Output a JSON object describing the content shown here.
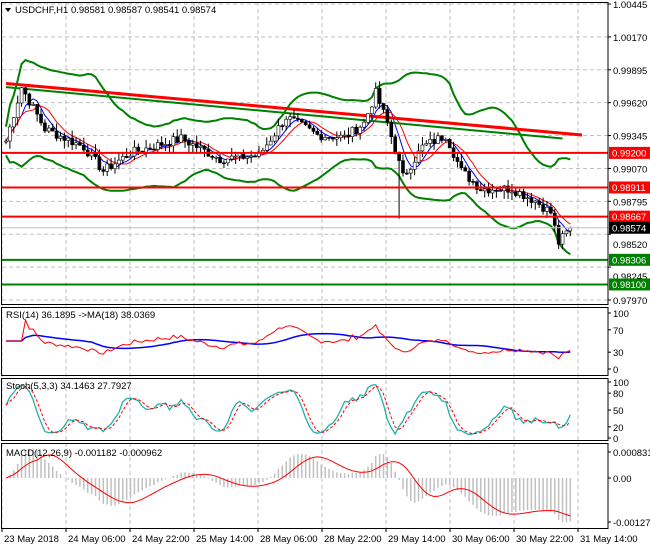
{
  "header": {
    "symbol": "USDCHF,H1",
    "open": "0.98581",
    "high": "0.98587",
    "low": "0.98541",
    "close": "0.98574"
  },
  "price_axis": [
    "1.00445",
    "1.00170",
    "0.99895",
    "0.99620",
    "0.99345",
    "0.99070",
    "0.98795",
    "0.98520",
    "0.98245",
    "0.97970"
  ],
  "levels": [
    {
      "label": "0.99200",
      "value": 0.992,
      "color": "#ff0000"
    },
    {
      "label": "0.98911",
      "value": 0.98911,
      "color": "#ff0000"
    },
    {
      "label": "0.98667",
      "value": 0.98667,
      "color": "#ff0000"
    },
    {
      "label": "0.98306",
      "value": 0.98306,
      "color": "#008000"
    },
    {
      "label": "0.98100",
      "value": 0.981,
      "color": "#008000"
    }
  ],
  "current_price": {
    "label": "0.98574",
    "value": 0.98574
  },
  "rsi": {
    "title": "RSI(14) 36.1895  ->MA(18) 38.0369",
    "axis": [
      "100",
      "70",
      "30",
      "0"
    ]
  },
  "stoch": {
    "title": "Stoch(5,3,3) 34.1463 27.7927",
    "axis": [
      "100",
      "80",
      "50",
      "20",
      "0"
    ]
  },
  "macd": {
    "title": "MACD(12,26,9) -0.001182 -0.000962",
    "axis": [
      "0.000831",
      "0.00",
      "-0.001277"
    ]
  },
  "time_axis": [
    "23 May 2018",
    "24 May 06:00",
    "24 May 22:00",
    "25 May 14:00",
    "28 May 06:00",
    "28 May 22:00",
    "29 May 14:00",
    "30 May 06:00",
    "30 May 22:00",
    "31 May 14:00"
  ],
  "chart_data": {
    "type": "candlestick",
    "symbol": "USDCHF",
    "timeframe": "H1",
    "ylim": [
      0.9797,
      1.00445
    ],
    "close_keypoints": {
      "bar": [
        0,
        4,
        10,
        20,
        25,
        32,
        45,
        55,
        65,
        72,
        80,
        87,
        92,
        95,
        98,
        102,
        107,
        113,
        117,
        122,
        130,
        136,
        140,
        142,
        145
      ],
      "price": [
        0.993,
        0.9975,
        0.994,
        0.9925,
        0.9905,
        0.992,
        0.9932,
        0.9915,
        0.9918,
        0.995,
        0.9935,
        0.9933,
        0.9945,
        0.997,
        0.9945,
        0.99,
        0.9925,
        0.9935,
        0.9905,
        0.989,
        0.989,
        0.988,
        0.987,
        0.9845,
        0.9857
      ]
    },
    "trendlines": [
      {
        "color": "#ff0000",
        "from": {
          "bar": 0,
          "price": 0.9978
        },
        "to": {
          "bar": 148,
          "price": 0.9935
        }
      },
      {
        "color": "#008000",
        "from": {
          "bar": 0,
          "price": 0.9975
        },
        "to": {
          "bar": 143,
          "price": 0.9932
        }
      }
    ],
    "indicators": [
      "Bollinger Bands",
      "Moving Averages",
      "RSI(14)",
      "MA(18)",
      "Stoch(5,3,3)",
      "MACD(12,26,9)"
    ],
    "colors": {
      "bull": "#000000",
      "bear": "#000000",
      "bands": "#008000",
      "rsi": "#ff0000",
      "rsi_ma": "#0000ff",
      "stoch_main": "#20b2aa",
      "stoch_signal": "#ff0000",
      "macd_hist": "#c0c0c0",
      "macd_signal": "#ff0000"
    }
  }
}
